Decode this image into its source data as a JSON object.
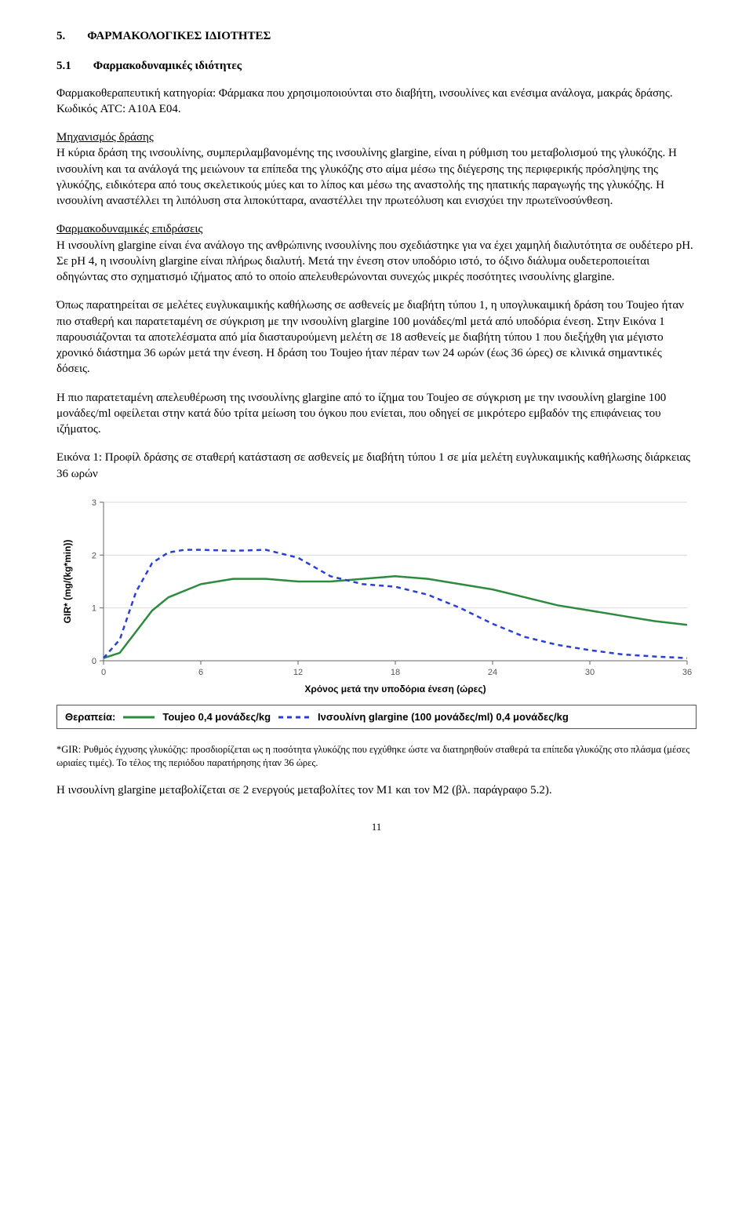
{
  "section": {
    "num": "5.",
    "title": "ΦΑΡΜΑΚΟΛΟΓΙΚΕΣ ΙΔΙΟΤΗΤΕΣ"
  },
  "subsection": {
    "num": "5.1",
    "title": "Φαρμακοδυναμικές ιδιότητες"
  },
  "p1": "Φαρμακοθεραπευτική κατηγορία: Φάρμακα που χρησιμοποιούνται στο διαβήτη, ινσουλίνες και ενέσιμα ανάλογα, μακράς δράσης. Κωδικός ATC: A10A E04.",
  "p2_head": "Μηχανισμός δράσης",
  "p2": "Η κύρια δράση της ινσουλίνης, συμπεριλαμβανομένης της ινσουλίνης glargine, είναι η ρύθμιση του μεταβολισμού της γλυκόζης. Η ινσουλίνη και τα ανάλογά της μειώνουν τα επίπεδα της γλυκόζης στο αίμα μέσω της διέγερσης της περιφερικής πρόσληψης της γλυκόζης, ειδικότερα από τους σκελετικούς μύες και το λίπος και μέσω της αναστολής της ηπατικής παραγωγής της γλυκόζης. Η ινσουλίνη αναστέλλει τη λιπόλυση στα λιποκύτταρα, αναστέλλει την πρωτεόλυση και ενισχύει την πρωτεϊνοσύνθεση.",
  "p3_head": "Φαρμακοδυναμικές επιδράσεις",
  "p3": "Η ινσουλίνη glargine είναι ένα ανάλογο της ανθρώπινης ινσουλίνης που σχεδιάστηκε για να έχει χαμηλή διαλυτότητα σε ουδέτερο pH. Σε pH 4, η ινσουλίνη glargine είναι πλήρως διαλυτή. Μετά την ένεση στον υποδόριο ιστό, το όξινο διάλυμα ουδετεροποιείται οδηγώντας στο σχηματισμό ιζήματος από το οποίο απελευθερώνονται συνεχώς μικρές ποσότητες ινσουλίνης glargine.",
  "p4": "Όπως παρατηρείται σε μελέτες ευγλυκαιμικής καθήλωσης σε ασθενείς με διαβήτη τύπου 1, η υπογλυκαιμική δράση του Toujeo ήταν πιο σταθερή και παρατεταμένη σε σύγκριση με την ινσουλίνη glargine 100 μονάδες/ml μετά από υποδόρια ένεση. Στην Εικόνα 1 παρουσιάζονται τα αποτελέσματα από μία διασταυρούμενη μελέτη σε 18 ασθενείς με διαβήτη τύπου 1 που διεξήχθη για μέγιστο χρονικό διάστημα 36 ωρών μετά την ένεση. Η δράση του Toujeo ήταν πέραν των 24 ωρών (έως 36 ώρες) σε κλινικά σημαντικές δόσεις.",
  "p5": "Η πιο παρατεταμένη απελευθέρωση της ινσουλίνης glargine από το ίζημα του Toujeo σε σύγκριση με την ινσουλίνη glargine 100 μονάδες/ml οφείλεται στην κατά δύο τρίτα μείωση του όγκου που ενίεται, που οδηγεί σε μικρότερο εμβαδόν της επιφάνειας του ιζήματος.",
  "p6": "Εικόνα 1: Προφίλ δράσης σε σταθερή κατάσταση σε ασθενείς με διαβήτη τύπου 1 σε μία μελέτη ευγλυκαιμικής καθήλωσης διάρκειας 36 ωρών",
  "chart": {
    "type": "line",
    "background_color": "#ffffff",
    "grid_color": "#d9d9d9",
    "axis_color": "#666666",
    "axis_width": 1,
    "ylabel": "GIR* (mg/(kg*min))",
    "xlabel": "Χρόνος μετά την υποδόρια ένεση (ώρες)",
    "label_fontsize": 12,
    "label_fontweight": "bold",
    "label_fontfamily": "Arial, Helvetica, sans-serif",
    "tick_fontsize": 11,
    "tick_color": "#555555",
    "xlim": [
      0,
      36
    ],
    "ylim": [
      0,
      3
    ],
    "xticks": [
      0,
      6,
      12,
      18,
      24,
      30,
      36
    ],
    "yticks": [
      0,
      1,
      2,
      3
    ],
    "series": [
      {
        "name": "Toujeo 0,4 μονάδες/kg",
        "color": "#2e8b3d",
        "line_width": 2.5,
        "dash": "none",
        "x": [
          0,
          1,
          2,
          3,
          4,
          6,
          8,
          10,
          12,
          14,
          16,
          18,
          20,
          22,
          24,
          26,
          28,
          30,
          32,
          34,
          36
        ],
        "y": [
          0.05,
          0.15,
          0.55,
          0.95,
          1.2,
          1.45,
          1.55,
          1.55,
          1.5,
          1.5,
          1.55,
          1.6,
          1.55,
          1.45,
          1.35,
          1.2,
          1.05,
          0.95,
          0.85,
          0.75,
          0.68
        ]
      },
      {
        "name": "Ινσουλίνη glargine (100 μονάδες/ml) 0,4 μονάδες/kg",
        "color": "#2a3fd6",
        "line_width": 2.5,
        "dash": "6,5",
        "x": [
          0,
          1,
          2,
          3,
          4,
          5,
          6,
          8,
          10,
          12,
          14,
          16,
          18,
          20,
          22,
          24,
          26,
          28,
          30,
          32,
          34,
          36
        ],
        "y": [
          0.05,
          0.4,
          1.3,
          1.85,
          2.05,
          2.1,
          2.1,
          2.08,
          2.1,
          1.95,
          1.6,
          1.45,
          1.4,
          1.25,
          1.0,
          0.7,
          0.45,
          0.3,
          0.2,
          0.12,
          0.08,
          0.05
        ]
      }
    ]
  },
  "legend": {
    "label": "Θεραπεία:",
    "items": [
      {
        "color": "#2e8b3d",
        "dash": "none",
        "text": "Toujeo 0,4 μονάδες/kg"
      },
      {
        "color": "#2a3fd6",
        "dash": "6,5",
        "text": "Ινσουλίνη glargine (100 μονάδες/ml) 0,4 μονάδες/kg"
      }
    ]
  },
  "footnote": "*GIR: Ρυθμός έγχυσης γλυκόζης: προσδιορίζεται ως η ποσότητα γλυκόζης που εγχύθηκε ώστε να διατηρηθούν σταθερά τα επίπεδα γλυκόζης στο πλάσμα (μέσες ωριαίες τιμές). Το τέλος της περιόδου παρατήρησης ήταν 36 ώρες.",
  "p7": "Η ινσουλίνη glargine μεταβολίζεται σε 2 ενεργούς μεταβολίτες τον M1 και τον M2 (βλ. παράγραφο 5.2).",
  "page_number": "11"
}
